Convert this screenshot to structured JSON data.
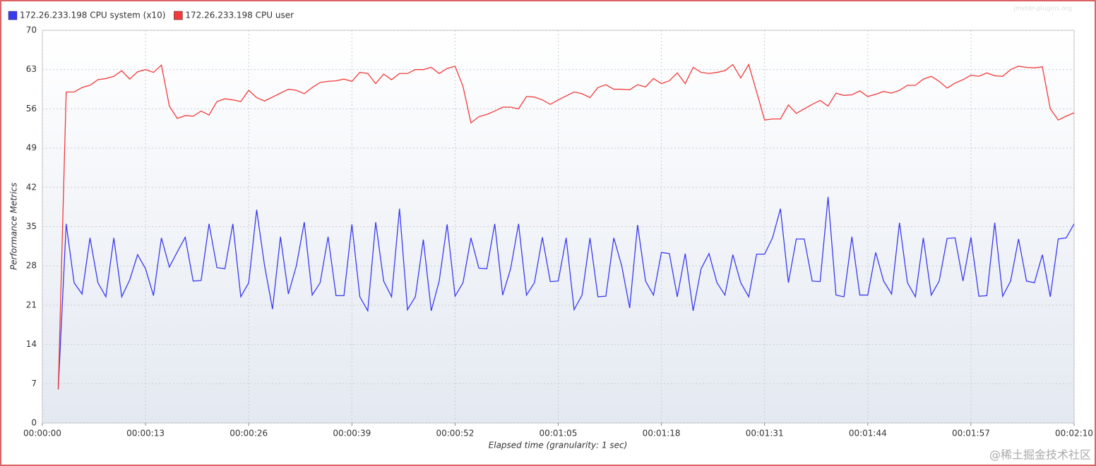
{
  "watermark": "jmeter-plugins.org",
  "credit": "@稀土掘金技术社区",
  "chart_data": {
    "type": "line",
    "x_label": "Elapsed time (granularity: 1 sec)",
    "y_label": "Performance Metrics",
    "x": [
      2,
      3,
      4,
      5,
      6,
      7,
      8,
      9,
      10,
      11,
      12,
      13,
      14,
      15,
      16,
      17,
      18,
      19,
      20,
      21,
      22,
      23,
      24,
      25,
      26,
      27,
      28,
      29,
      30,
      31,
      32,
      33,
      34,
      35,
      36,
      37,
      38,
      39,
      40,
      41,
      42,
      43,
      44,
      45,
      46,
      47,
      48,
      49,
      50,
      51,
      52,
      53,
      54,
      55,
      56,
      57,
      58,
      59,
      60,
      61,
      62,
      63,
      64,
      65,
      66,
      67,
      68,
      69,
      70,
      71,
      72,
      73,
      74,
      75,
      76,
      77,
      78,
      79,
      80,
      81,
      82,
      83,
      84,
      85,
      86,
      87,
      88,
      89,
      90,
      91,
      92,
      93,
      94,
      95,
      96,
      97,
      98,
      99,
      100,
      101,
      102,
      103,
      104,
      105,
      106,
      107,
      108,
      109,
      110,
      111,
      112,
      113,
      114,
      115,
      116,
      117,
      118,
      119,
      120,
      121,
      122,
      123,
      124,
      125,
      126,
      127,
      128,
      129,
      130
    ],
    "series": [
      {
        "name": "172.26.233.198 CPU system (x10)",
        "color": "#3a3af0",
        "values": [
          6,
          35.5,
          25,
          23,
          33,
          25,
          22.5,
          33,
          22.5,
          25.5,
          30,
          27.5,
          22.7,
          33,
          27.8,
          30.5,
          33.1,
          25.3,
          25.4,
          35.5,
          27.7,
          27.5,
          35.5,
          22.5,
          25,
          38,
          28,
          20.3,
          33.2,
          23,
          28,
          35.8,
          22.8,
          25,
          33.2,
          22.7,
          22.7,
          35.4,
          22.5,
          20,
          35.8,
          25.3,
          22.5,
          38.2,
          20.2,
          22.5,
          32.7,
          20,
          25.3,
          35.4,
          22.6,
          25,
          33,
          27.6,
          27.5,
          35.5,
          22.8,
          27.5,
          35.5,
          22.8,
          25,
          33.1,
          25.2,
          25.3,
          33,
          20.2,
          22.8,
          33,
          22.5,
          22.6,
          33,
          28,
          20.5,
          35.3,
          25.3,
          22.8,
          30.4,
          30.2,
          22.5,
          30.2,
          20,
          27.5,
          30.2,
          25,
          22.8,
          30,
          25,
          22.5,
          30.1,
          30.1,
          33,
          38.2,
          25,
          32.8,
          32.8,
          25.3,
          25.2,
          40.3,
          22.8,
          22.5,
          33.2,
          22.8,
          22.8,
          30.4,
          25.3,
          23,
          35.7,
          25,
          22.5,
          33,
          22.8,
          25.3,
          32.9,
          33,
          25.3,
          33.1,
          22.6,
          22.7,
          35.7,
          22.6,
          25.3,
          32.8,
          25.3,
          25,
          30,
          22.5,
          32.8,
          33,
          35.5
        ]
      },
      {
        "name": "172.26.233.198 CPU user",
        "color": "#f23a3a",
        "values": [
          6,
          59,
          59,
          59.8,
          60.2,
          61.2,
          61.4,
          61.8,
          62.8,
          61.3,
          62.6,
          63,
          62.5,
          63.8,
          56.5,
          54.3,
          54.8,
          54.7,
          55.6,
          54.9,
          57.3,
          57.8,
          57.6,
          57.3,
          59.3,
          58,
          57.4,
          58.1,
          58.8,
          59.5,
          59.3,
          58.7,
          59.8,
          60.7,
          60.9,
          61,
          61.3,
          60.9,
          62.5,
          62.3,
          60.5,
          62.2,
          61.2,
          62.3,
          62.3,
          63,
          63,
          63.4,
          62.3,
          63.2,
          63.6,
          60,
          53.5,
          54.6,
          55,
          55.6,
          56.3,
          56.3,
          56,
          58.2,
          58.1,
          57.6,
          56.8,
          57.6,
          58.3,
          59,
          58.7,
          58,
          59.8,
          60.3,
          59.5,
          59.5,
          59.4,
          60.3,
          59.9,
          61.4,
          60.5,
          61,
          62.4,
          60.5,
          63.4,
          62.5,
          62.3,
          62.5,
          62.8,
          63.9,
          61.5,
          63.9,
          59,
          54,
          54.2,
          54.2,
          56.7,
          55.2,
          56,
          56.8,
          57.5,
          56.5,
          58.8,
          58.4,
          58.5,
          59.2,
          58.2,
          58.6,
          59.1,
          58.8,
          59.3,
          60.2,
          60.2,
          61.3,
          61.8,
          60.9,
          59.7,
          60.6,
          61.2,
          62,
          61.8,
          62.4,
          61.9,
          61.8,
          63,
          63.6,
          63.4,
          63.3,
          63.5,
          56,
          54,
          54.7,
          55.3
        ]
      }
    ],
    "xlim": [
      0,
      130
    ],
    "ylim": [
      0,
      70
    ],
    "xticks": [
      {
        "value": 0,
        "label": "00:00:00"
      },
      {
        "value": 13,
        "label": "00:00:13"
      },
      {
        "value": 26,
        "label": "00:00:26"
      },
      {
        "value": 39,
        "label": "00:00:39"
      },
      {
        "value": 52,
        "label": "00:00:52"
      },
      {
        "value": 65,
        "label": "00:01:05"
      },
      {
        "value": 78,
        "label": "00:01:18"
      },
      {
        "value": 91,
        "label": "00:01:31"
      },
      {
        "value": 104,
        "label": "00:01:44"
      },
      {
        "value": 117,
        "label": "00:01:57"
      },
      {
        "value": 130,
        "label": "00:02:10"
      }
    ],
    "yticks": [
      0,
      7,
      14,
      21,
      28,
      35,
      42,
      49,
      56,
      63,
      70
    ],
    "grid": true,
    "legend": "top-left"
  }
}
